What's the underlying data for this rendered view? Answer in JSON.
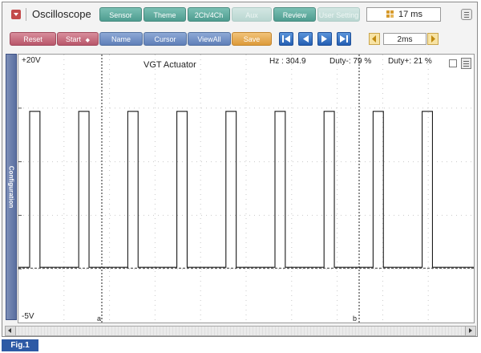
{
  "app": {
    "title": "Oscilloscope"
  },
  "tabs": [
    {
      "label": "Sensor",
      "enabled": true
    },
    {
      "label": "Theme",
      "enabled": true
    },
    {
      "label": "2Ch/4Ch",
      "enabled": true
    },
    {
      "label": "Aux",
      "enabled": false
    },
    {
      "label": "Review",
      "enabled": true
    },
    {
      "label": "User Setting",
      "enabled": false
    }
  ],
  "status": {
    "sample_time": "17 ms"
  },
  "toolbar": {
    "reset": "Reset",
    "start": "Start",
    "name": "Name",
    "cursor": "Cursor",
    "viewall": "ViewAll",
    "save": "Save"
  },
  "nav_icons": [
    "first-page-icon",
    "previous-icon",
    "next-icon",
    "last-page-icon"
  ],
  "timescale": {
    "value": "2ms"
  },
  "side_panel": {
    "label": "Configuration"
  },
  "plot": {
    "channel_title": "VGT Actuator",
    "y_max_label": "+20V",
    "y_min_label": "-5V",
    "readouts": {
      "hz": "Hz   : 304.9",
      "duty_minus": "Duty-: 79 %",
      "duty_plus": "Duty+: 21 %"
    },
    "cursor_a_label": "a",
    "cursor_b_label": "b"
  },
  "colors": {
    "tab": "#5ea89b",
    "action_red": "#c8697b",
    "action_blue": "#6f8cc4",
    "save_orange": "#e6a94e",
    "nav_blue": "#2f6fc4",
    "config_panel": "#6a7eab",
    "figure_tag": "#2d5aa5"
  },
  "figure_label": "Fig.1",
  "chart_data": {
    "type": "line",
    "title": "VGT Actuator",
    "ylim": [
      -5,
      20
    ],
    "y_tick_labels": [
      "+20V",
      "-5V"
    ],
    "grid": true,
    "waveform": "square",
    "frequency_hz": 304.9,
    "duty_minus_percent": 79,
    "duty_plus_percent": 21,
    "high_level_v": 15,
    "low_level_v": 0,
    "pulse_count": 9,
    "cursors": [
      {
        "name": "a"
      },
      {
        "name": "b"
      }
    ]
  }
}
